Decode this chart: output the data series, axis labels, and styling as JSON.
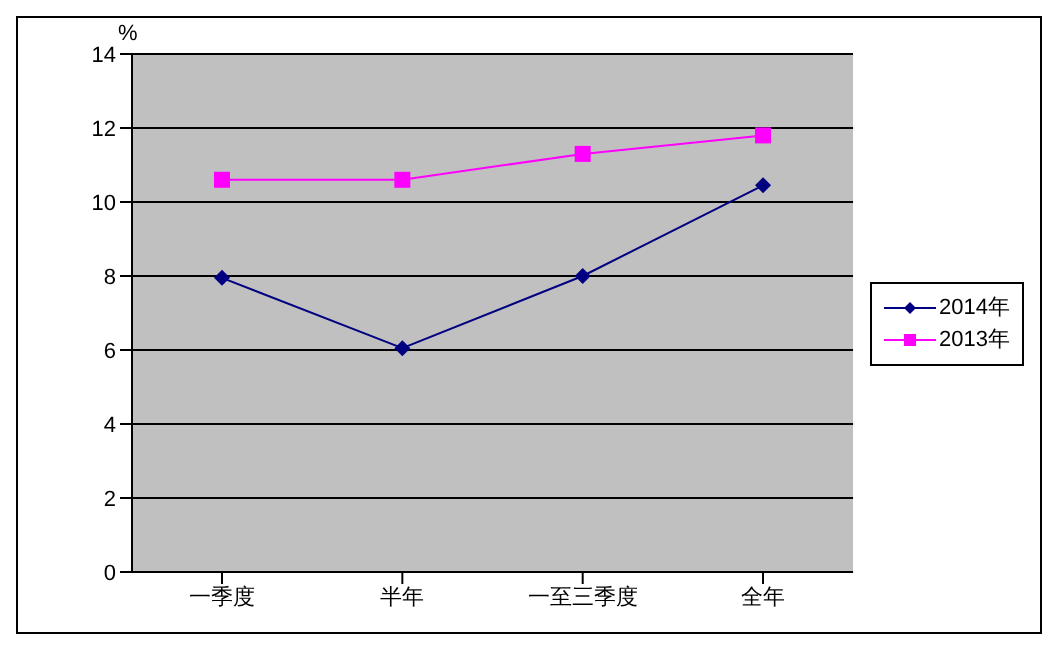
{
  "chart_data": {
    "type": "line",
    "ylabel": "%",
    "categories": [
      "一季度",
      "半年",
      "一至三季度",
      "全年"
    ],
    "series": [
      {
        "name": "2014年",
        "color": "#000080",
        "marker": "diamond",
        "values": [
          7.95,
          6.05,
          8.0,
          10.45
        ]
      },
      {
        "name": "2013年",
        "color": "#ff00ff",
        "marker": "square",
        "values": [
          10.6,
          10.6,
          11.3,
          11.8
        ]
      }
    ],
    "ylim": [
      0,
      14
    ],
    "yticks": [
      0,
      2,
      4,
      6,
      8,
      10,
      12,
      14
    ],
    "grid": "y",
    "legend": "right"
  }
}
